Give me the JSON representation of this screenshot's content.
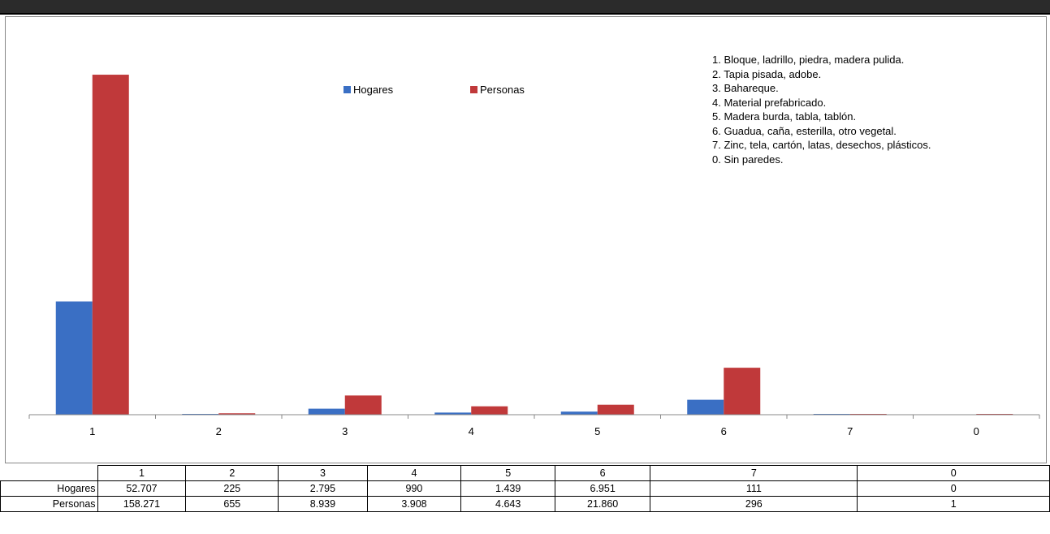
{
  "chart_data": {
    "type": "bar",
    "categories": [
      "1",
      "2",
      "3",
      "4",
      "5",
      "6",
      "7",
      "0"
    ],
    "series": [
      {
        "name": "Hogares",
        "color": "#3a6fc4",
        "values": [
          52707,
          225,
          2795,
          990,
          1439,
          6951,
          111,
          0
        ]
      },
      {
        "name": "Personas",
        "color": "#c0393a",
        "values": [
          158271,
          655,
          8939,
          3908,
          4643,
          21860,
          296,
          1
        ]
      }
    ],
    "ylim": [
      0,
      170000
    ],
    "grid": false,
    "legend_position": "top",
    "notes": [
      "1. Bloque, ladrillo, piedra, madera pulida.",
      "2. Tapia pisada, adobe.",
      "3. Bahareque.",
      "4. Material prefabricado.",
      "5. Madera burda, tabla, tablón.",
      "6. Guadua, caña, esterilla, otro vegetal.",
      "7. Zinc, tela, cartón, latas, desechos, plásticos.",
      "0. Sin paredes."
    ]
  },
  "table": {
    "headers": [
      "1",
      "2",
      "3",
      "4",
      "5",
      "6",
      "7",
      "0"
    ],
    "rows": [
      {
        "label": "Hogares",
        "cells": [
          "52.707",
          "225",
          "2.795",
          "990",
          "1.439",
          "6.951",
          "111",
          "0"
        ]
      },
      {
        "label": "Personas",
        "cells": [
          "158.271",
          "655",
          "8.939",
          "3.908",
          "4.643",
          "21.860",
          "296",
          "1"
        ]
      }
    ]
  }
}
